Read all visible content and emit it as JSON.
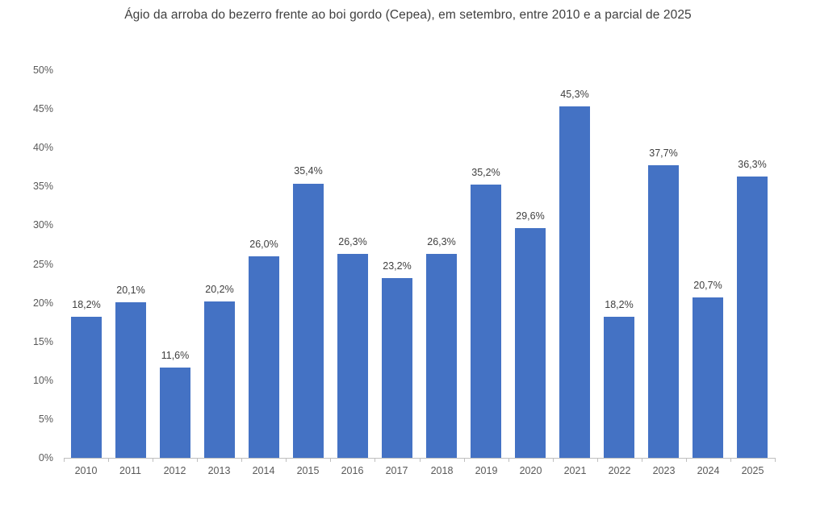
{
  "chart_data": {
    "type": "bar",
    "title": "Ágio da arroba do bezerro frente ao boi gordo (Cepea),  em setembro, entre 2010 e a parcial de 2025",
    "categories": [
      "2010",
      "2011",
      "2012",
      "2013",
      "2014",
      "2015",
      "2016",
      "2017",
      "2018",
      "2019",
      "2020",
      "2021",
      "2022",
      "2023",
      "2024",
      "2025"
    ],
    "values": [
      18.2,
      20.1,
      11.6,
      20.2,
      26.0,
      35.4,
      26.3,
      23.2,
      26.3,
      35.2,
      29.6,
      45.3,
      18.2,
      37.7,
      20.7,
      36.3
    ],
    "data_labels": [
      "18,2%",
      "20,1%",
      "11,6%",
      "20,2%",
      "26,0%",
      "35,4%",
      "26,3%",
      "23,2%",
      "26,3%",
      "35,2%",
      "29,6%",
      "45,3%",
      "18,2%",
      "37,7%",
      "20,7%",
      "36,3%"
    ],
    "ytick_labels": [
      "0%",
      "5%",
      "10%",
      "15%",
      "20%",
      "25%",
      "30%",
      "35%",
      "40%",
      "45%",
      "50%"
    ],
    "ylim": [
      0,
      50
    ],
    "ytick_step": 5,
    "xlabel": "",
    "ylabel": "",
    "grid": false,
    "legend": "none",
    "colors": {
      "bar": "#4472C4",
      "axis_line": "#BFBFBF",
      "title_text": "#3f3f3f",
      "data_label_text": "#404040",
      "tick_label_text": "#595959"
    }
  }
}
